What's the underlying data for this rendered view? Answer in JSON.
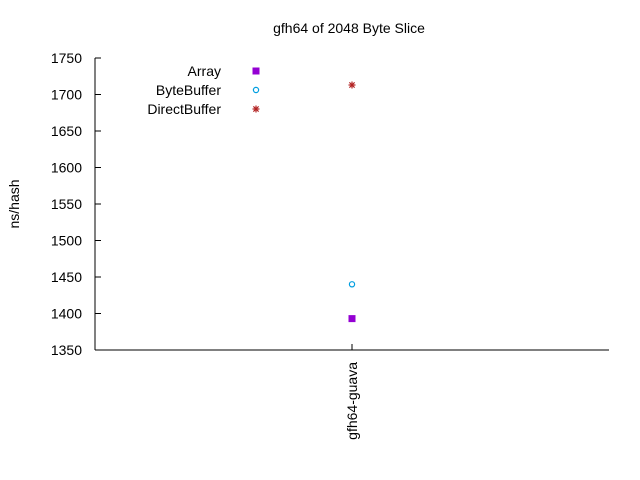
{
  "chart_data": {
    "type": "scatter",
    "title": "gfh64 of 2048 Byte Slice",
    "ylabel": "ns/hash",
    "xlabel": "",
    "categories": [
      "gfh64-guava"
    ],
    "ylim": [
      1350,
      1750
    ],
    "yticks": [
      1350,
      1400,
      1450,
      1500,
      1550,
      1600,
      1650,
      1700,
      1750
    ],
    "grid": false,
    "legend_position": "top-left",
    "series": [
      {
        "name": "Array",
        "marker": "filled-square",
        "color": "#9400d3",
        "values": [
          1393
        ]
      },
      {
        "name": "ByteBuffer",
        "marker": "open-circle",
        "color": "#009ee0",
        "values": [
          1440
        ]
      },
      {
        "name": "DirectBuffer",
        "marker": "asterisk",
        "color": "#b22222",
        "values": [
          1713
        ]
      }
    ]
  }
}
